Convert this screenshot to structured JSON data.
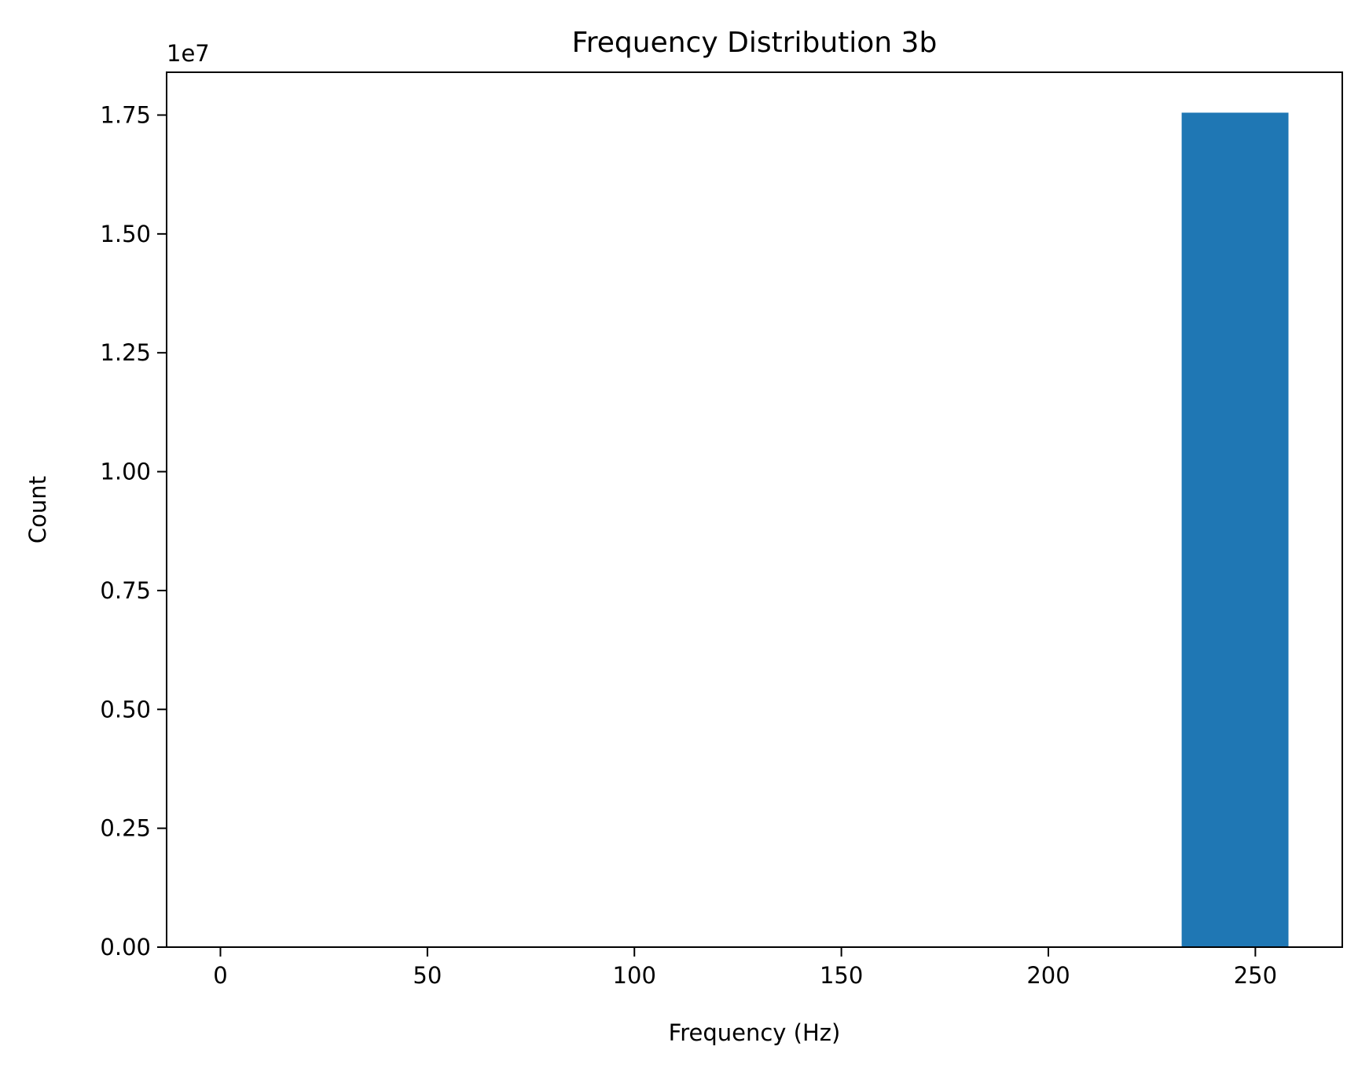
{
  "chart_data": {
    "type": "bar",
    "title": "Frequency Distribution 3b",
    "xlabel": "Frequency (Hz)",
    "ylabel": "Count",
    "y_offset_label": "1e7",
    "xlim": [
      -13,
      271
    ],
    "ylim": [
      0,
      18400000
    ],
    "x_ticks": [
      0,
      50,
      100,
      150,
      200,
      250
    ],
    "x_tick_labels": [
      "0",
      "50",
      "100",
      "150",
      "200",
      "250"
    ],
    "y_ticks": [
      0,
      2500000,
      5000000,
      7500000,
      10000000,
      12500000,
      15000000,
      17500000
    ],
    "y_tick_labels": [
      "0.00",
      "0.25",
      "0.50",
      "0.75",
      "1.00",
      "1.25",
      "1.50",
      "1.75"
    ],
    "bins": [
      {
        "x0": 0.0,
        "x1": 25.8,
        "count": 0
      },
      {
        "x0": 25.8,
        "x1": 51.6,
        "count": 0
      },
      {
        "x0": 51.6,
        "x1": 77.4,
        "count": 0
      },
      {
        "x0": 77.4,
        "x1": 103.2,
        "count": 0
      },
      {
        "x0": 103.2,
        "x1": 129.0,
        "count": 0
      },
      {
        "x0": 129.0,
        "x1": 154.8,
        "count": 0
      },
      {
        "x0": 154.8,
        "x1": 180.6,
        "count": 0
      },
      {
        "x0": 180.6,
        "x1": 206.4,
        "count": 0
      },
      {
        "x0": 206.4,
        "x1": 232.2,
        "count": 0
      },
      {
        "x0": 232.2,
        "x1": 258.0,
        "count": 17550000
      }
    ],
    "bar_color": "#1f77b4",
    "grid": false
  }
}
